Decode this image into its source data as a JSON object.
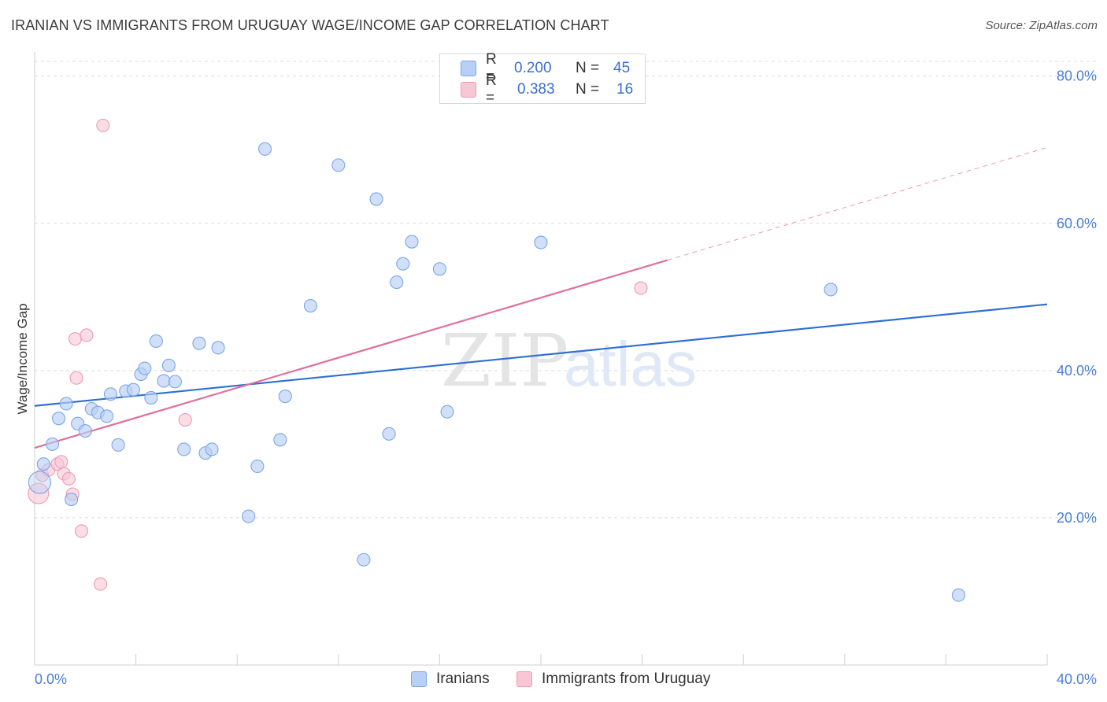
{
  "title": "IRANIAN VS IMMIGRANTS FROM URUGUAY WAGE/INCOME GAP CORRELATION CHART",
  "source": "Source: ZipAtlas.com",
  "watermark": {
    "zip": "ZIP",
    "atlas": "atlas"
  },
  "legend": {
    "rows": [
      {
        "r_label": "R =",
        "r_value": "0.200",
        "n_label": "N =",
        "n_value": "45"
      },
      {
        "r_label": "R =",
        "r_value": "0.383",
        "n_label": "N =",
        "n_value": "16"
      }
    ]
  },
  "bottom_legend": {
    "iranians": "Iranians",
    "uruguay": "Immigrants from Uruguay"
  },
  "colors": {
    "blue_fill": "#b8d0f5",
    "blue_stroke": "#7aa6e8",
    "blue_line": "#2f6fd0",
    "pink_fill": "#f9c6d5",
    "pink_stroke": "#ee9bb4",
    "pink_line": "#e0709a",
    "tick_text": "#4a7fd4"
  },
  "chart_data": {
    "type": "scatter",
    "title": "IRANIAN VS IMMIGRANTS FROM URUGUAY WAGE/INCOME GAP CORRELATION CHART",
    "xlabel": "",
    "ylabel": "Wage/Income Gap",
    "xlim": [
      0,
      40
    ],
    "ylim": [
      0,
      82
    ],
    "x_tick_labels": [
      "0.0%",
      "40.0%"
    ],
    "y_ticks": [
      {
        "value": 20,
        "label": "20.0%"
      },
      {
        "value": 40,
        "label": "40.0%"
      },
      {
        "value": 60,
        "label": "60.0%"
      },
      {
        "value": 80,
        "label": "80.0%"
      }
    ],
    "grid": true,
    "series": [
      {
        "name": "Iranians",
        "R": 0.2,
        "N": 45,
        "trend": {
          "x0": 0,
          "y0": 35.2,
          "x1": 40,
          "y1": 49.0,
          "dash_from": null
        },
        "points": [
          [
            0.35,
            27.3
          ],
          [
            0.7,
            30.0
          ],
          [
            0.95,
            33.5
          ],
          [
            1.25,
            35.5
          ],
          [
            1.45,
            22.5
          ],
          [
            1.7,
            32.8
          ],
          [
            2.0,
            31.8
          ],
          [
            2.25,
            34.8
          ],
          [
            2.5,
            34.3
          ],
          [
            2.85,
            33.8
          ],
          [
            3.0,
            36.8
          ],
          [
            3.3,
            29.9
          ],
          [
            3.6,
            37.2
          ],
          [
            3.9,
            37.4
          ],
          [
            4.2,
            39.5
          ],
          [
            4.35,
            40.3
          ],
          [
            4.6,
            36.3
          ],
          [
            4.8,
            44.0
          ],
          [
            5.1,
            38.6
          ],
          [
            5.3,
            40.7
          ],
          [
            5.55,
            38.5
          ],
          [
            5.9,
            29.3
          ],
          [
            6.5,
            43.7
          ],
          [
            6.75,
            28.8
          ],
          [
            7.0,
            29.3
          ],
          [
            7.25,
            43.1
          ],
          [
            8.45,
            20.2
          ],
          [
            8.8,
            27.0
          ],
          [
            9.1,
            70.1
          ],
          [
            9.7,
            30.6
          ],
          [
            9.9,
            36.5
          ],
          [
            10.9,
            48.8
          ],
          [
            12.0,
            67.9
          ],
          [
            13.0,
            14.3
          ],
          [
            13.5,
            63.3
          ],
          [
            14.0,
            31.4
          ],
          [
            14.3,
            52.0
          ],
          [
            14.55,
            54.5
          ],
          [
            14.9,
            57.5
          ],
          [
            16.0,
            53.8
          ],
          [
            16.3,
            34.4
          ],
          [
            20.0,
            57.4
          ],
          [
            31.45,
            51.0
          ],
          [
            36.5,
            9.5
          ],
          [
            0.2,
            24.8
          ]
        ]
      },
      {
        "name": "Immigrants from Uruguay",
        "R": 0.383,
        "N": 16,
        "trend": {
          "x0": 0,
          "y0": 29.5,
          "x1": 40,
          "y1": 70.3,
          "solid_until": 25.0
        },
        "points": [
          [
            0.15,
            23.3
          ],
          [
            0.3,
            25.8
          ],
          [
            0.55,
            26.5
          ],
          [
            0.9,
            27.3
          ],
          [
            1.05,
            27.6
          ],
          [
            1.15,
            26.0
          ],
          [
            1.35,
            25.3
          ],
          [
            1.5,
            23.2
          ],
          [
            1.65,
            39.0
          ],
          [
            1.6,
            44.3
          ],
          [
            1.85,
            18.2
          ],
          [
            2.05,
            44.8
          ],
          [
            2.6,
            11.0
          ],
          [
            2.7,
            73.3
          ],
          [
            5.95,
            33.3
          ],
          [
            23.95,
            51.2
          ]
        ]
      }
    ]
  }
}
